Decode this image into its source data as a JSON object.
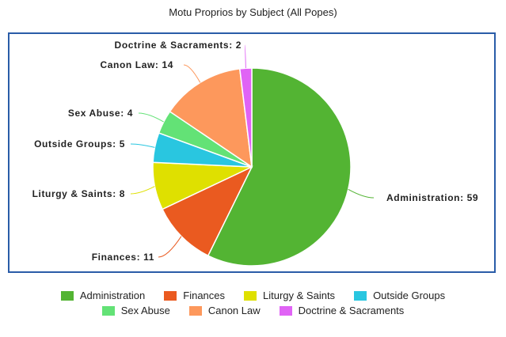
{
  "chart_data": {
    "type": "pie",
    "title": "Motu Proprios by Subject (All Popes)",
    "categories": [
      "Administration",
      "Finances",
      "Liturgy & Saints",
      "Outside Groups",
      "Sex Abuse",
      "Canon Law",
      "Doctrine & Sacraments"
    ],
    "values": [
      59,
      11,
      8,
      5,
      4,
      14,
      2
    ],
    "colors": [
      "#53b433",
      "#ea5a20",
      "#dfe000",
      "#29c6e0",
      "#63e276",
      "#fd985c",
      "#e063f5"
    ],
    "data_labels": [
      "Administration: 59",
      "Finances: 11",
      "Liturgy & Saints: 8",
      "Outside Groups: 5",
      "Sex Abuse: 4",
      "Canon Law: 14",
      "Doctrine & Sacraments: 2"
    ],
    "legend_placement": "bottom",
    "legend_rows": [
      [
        "Administration",
        "Finances",
        "Liturgy & Saints",
        "Outside Groups"
      ],
      [
        "Sex Abuse",
        "Canon Law",
        "Doctrine & Sacraments"
      ]
    ]
  }
}
